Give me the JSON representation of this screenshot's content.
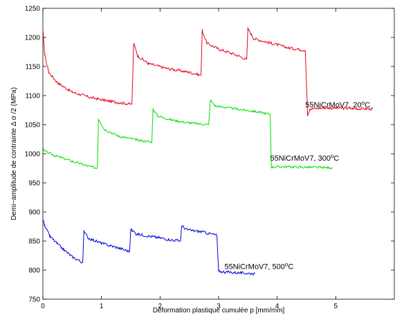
{
  "chart_data": {
    "type": "line",
    "xlabel": "Déformation plastique cumulée p [mm/mm]",
    "ylabel": "Demi−amplitude de contrainte Δ σ /2 (MPa)",
    "xlim": [
      0,
      6
    ],
    "ylim": [
      750,
      1250
    ],
    "xticks": [
      0,
      1,
      2,
      3,
      4,
      5
    ],
    "yticks": [
      750,
      800,
      850,
      900,
      950,
      1000,
      1050,
      1100,
      1150,
      1200,
      1250
    ],
    "grid": false,
    "series": [
      {
        "name": "55NiCrMoV7, 20°C",
        "label_main": "55NiCrMoV7, 20",
        "label_sup": "o",
        "label_unit": "C",
        "label_pos": [
          4.48,
          1080
        ],
        "color": "#e8001c",
        "noise": 2.5,
        "segments": [
          [
            [
              0,
              1215
            ],
            [
              0.03,
              1170
            ],
            [
              0.1,
              1140
            ],
            [
              0.25,
              1122
            ],
            [
              0.5,
              1106
            ],
            [
              0.8,
              1097
            ],
            [
              1.1,
              1091
            ],
            [
              1.3,
              1088
            ],
            [
              1.52,
              1085
            ]
          ],
          [
            [
              1.52,
              1085
            ],
            [
              1.55,
              1190
            ],
            [
              1.62,
              1168
            ],
            [
              1.8,
              1155
            ],
            [
              2.1,
              1147
            ],
            [
              2.5,
              1140
            ],
            [
              2.7,
              1135
            ]
          ],
          [
            [
              2.7,
              1135
            ],
            [
              2.72,
              1212
            ],
            [
              2.8,
              1190
            ],
            [
              3.0,
              1180
            ],
            [
              3.3,
              1170
            ],
            [
              3.48,
              1162
            ]
          ],
          [
            [
              3.48,
              1162
            ],
            [
              3.5,
              1215
            ],
            [
              3.6,
              1198
            ],
            [
              3.9,
              1190
            ],
            [
              4.2,
              1182
            ],
            [
              4.48,
              1178
            ]
          ],
          [
            [
              4.48,
              1178
            ],
            [
              4.52,
              1065
            ],
            [
              4.56,
              1077
            ],
            [
              4.8,
              1079
            ],
            [
              5.2,
              1078
            ],
            [
              5.63,
              1077
            ]
          ]
        ]
      },
      {
        "name": "55NiCrMoV7, 300°C",
        "label_main": "55NiCrMoV7, 300",
        "label_sup": "o",
        "label_unit": "C",
        "label_pos": [
          3.88,
          988
        ],
        "color": "#00dd00",
        "noise": 2,
        "segments": [
          [
            [
              0,
              1013
            ],
            [
              0.02,
              1005
            ],
            [
              0.2,
              997
            ],
            [
              0.5,
              987
            ],
            [
              0.8,
              978
            ],
            [
              0.93,
              975
            ]
          ],
          [
            [
              0.93,
              975
            ],
            [
              0.95,
              1060
            ],
            [
              1.05,
              1042
            ],
            [
              1.3,
              1030
            ],
            [
              1.6,
              1024
            ],
            [
              1.86,
              1020
            ]
          ],
          [
            [
              1.86,
              1020
            ],
            [
              1.88,
              1077
            ],
            [
              1.96,
              1065
            ],
            [
              2.2,
              1058
            ],
            [
              2.5,
              1053
            ],
            [
              2.83,
              1050
            ]
          ],
          [
            [
              2.83,
              1050
            ],
            [
              2.86,
              1092
            ],
            [
              2.95,
              1082
            ],
            [
              3.3,
              1077
            ],
            [
              3.6,
              1073
            ],
            [
              3.88,
              1068
            ]
          ],
          [
            [
              3.88,
              1068
            ],
            [
              3.9,
              977
            ],
            [
              4.0,
              978
            ],
            [
              4.4,
              977
            ],
            [
              4.95,
              976
            ]
          ]
        ]
      },
      {
        "name": "55NiCrMoV7, 500°C",
        "label_main": "55NiCrMoV7, 500",
        "label_sup": "o",
        "label_unit": "C",
        "label_pos": [
          3.1,
          802
        ],
        "color": "#0000dd",
        "noise": 2.5,
        "segments": [
          [
            [
              0,
              888
            ],
            [
              0.03,
              876
            ],
            [
              0.12,
              858
            ],
            [
              0.3,
              840
            ],
            [
              0.5,
              823
            ],
            [
              0.68,
              813
            ]
          ],
          [
            [
              0.68,
              813
            ],
            [
              0.7,
              866
            ],
            [
              0.78,
              855
            ],
            [
              1.0,
              846
            ],
            [
              1.3,
              838
            ],
            [
              1.48,
              832
            ]
          ],
          [
            [
              1.48,
              832
            ],
            [
              1.5,
              870
            ],
            [
              1.6,
              862
            ],
            [
              1.9,
              857
            ],
            [
              2.2,
              852
            ],
            [
              2.35,
              850
            ]
          ],
          [
            [
              2.35,
              850
            ],
            [
              2.37,
              876
            ],
            [
              2.47,
              869
            ],
            [
              2.7,
              866
            ],
            [
              2.97,
              860
            ]
          ],
          [
            [
              2.97,
              860
            ],
            [
              3.0,
              798
            ],
            [
              3.1,
              797
            ],
            [
              3.4,
              795
            ],
            [
              3.62,
              794
            ]
          ]
        ]
      }
    ]
  }
}
